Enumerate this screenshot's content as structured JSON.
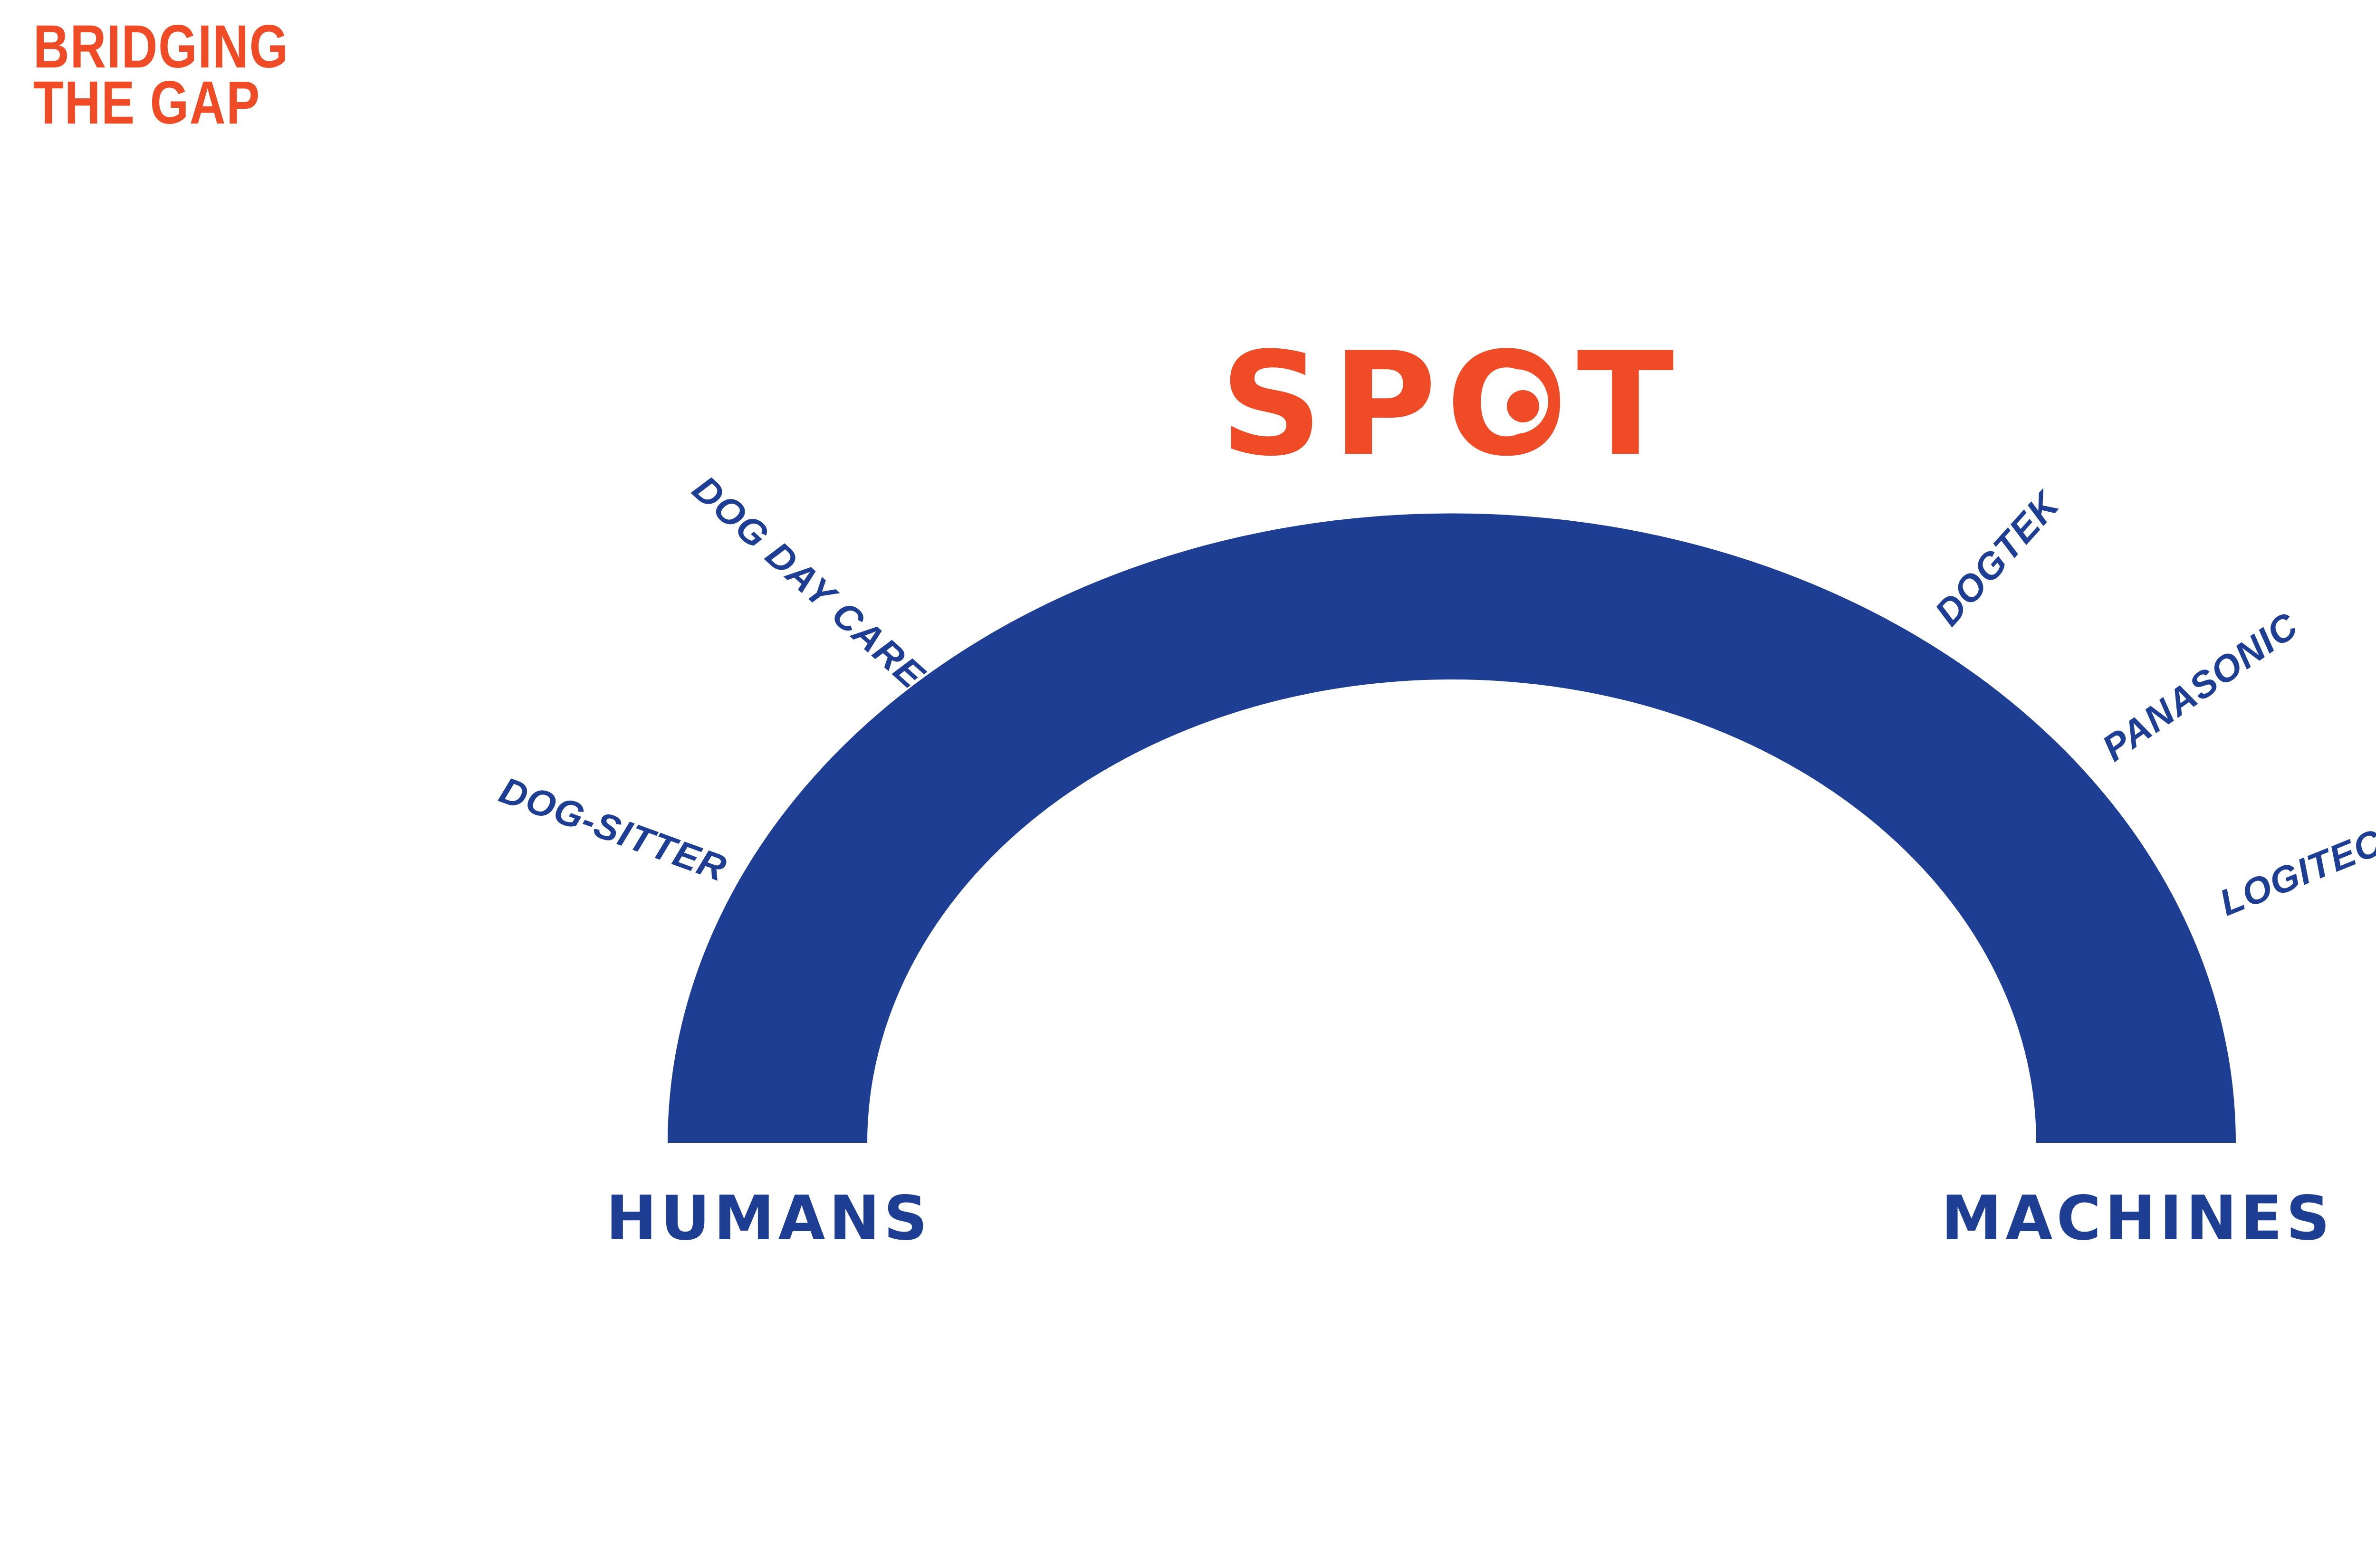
{
  "title": {
    "line1": "BRIDGING",
    "line2": "THE GAP"
  },
  "brand": {
    "logo_text": "SPOT",
    "logo_color": "#ee4b26"
  },
  "colors": {
    "accent": "#ee4b26",
    "primary": "#1e3e94"
  },
  "poles": {
    "left": "HUMANS",
    "right": "MACHINES"
  },
  "human_side": {
    "items": [
      {
        "label": "DOG-SITTER"
      },
      {
        "label": "DOG DAY CARE"
      }
    ]
  },
  "machine_side": {
    "items": [
      {
        "label": "DOGTEK"
      },
      {
        "label": "PANASONIC"
      },
      {
        "label": "LOGITECH"
      }
    ]
  }
}
